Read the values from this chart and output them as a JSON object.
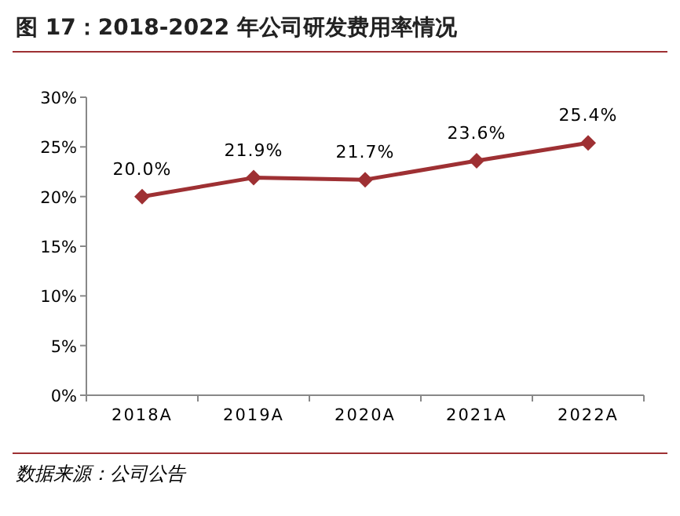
{
  "chart_data": {
    "type": "line",
    "title": "图 17：2018-2022 年公司研发费用率情况",
    "annotations": [
      "数据来源：公司公告"
    ],
    "categories": [
      "2018A",
      "2019A",
      "2020A",
      "2021A",
      "2022A"
    ],
    "series": [
      {
        "color": "#9e3033",
        "values": [
          20.0,
          21.9,
          21.7,
          23.6,
          25.4
        ],
        "value_labels": [
          "20.0%",
          "21.9%",
          "21.7%",
          "23.6%",
          "25.4%"
        ]
      }
    ],
    "ylim": [
      0,
      30
    ],
    "yticks": [
      {
        "value": 0,
        "label": "0%"
      },
      {
        "value": 5,
        "label": "5%"
      },
      {
        "value": 10,
        "label": "10%"
      },
      {
        "value": 15,
        "label": "15%"
      },
      {
        "value": 20,
        "label": "20%"
      },
      {
        "value": 25,
        "label": "25%"
      },
      {
        "value": 30,
        "label": "30%"
      }
    ],
    "marker": "diamond",
    "line_style": "solid"
  }
}
